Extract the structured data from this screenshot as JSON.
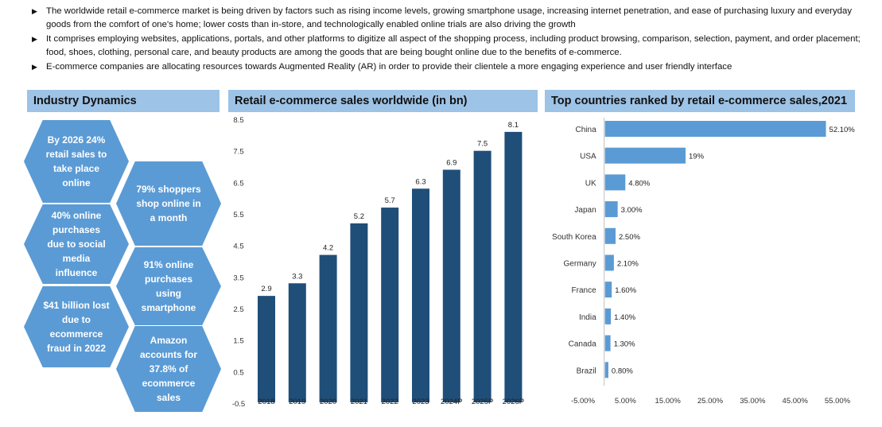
{
  "bullets": [
    "The worldwide retail e-commerce market is being driven by factors such as rising income levels, growing smartphone usage, increasing internet penetration, and ease of purchasing luxury and everyday goods from the comfort of one's home; lower costs than in-store, and technologically enabled online trials are also driving the growth",
    "It comprises employing websites, applications, portals, and other platforms to digitize all aspect of the shopping process, including product browsing, comparison, selection, payment, and order placement; food, shoes, clothing, personal care, and beauty products are among the goods that are being bought online due to the benefits of e-commerce.",
    "E-commerce companies are allocating resources towards Augmented Reality (AR) in order to provide their clientele a more engaging experience and user friendly interface"
  ],
  "industry": {
    "title": "Industry Dynamics",
    "facts": [
      "By 2026 24% retail sales to take place online",
      "79% shoppers shop online in a month",
      "40% online purchases due to social media influence",
      "91% online purchases using smartphone",
      "$41 billion lost due to ecommerce fraud in 2022",
      "Amazon accounts for 37.8% of ecommerce sales"
    ]
  },
  "colors": {
    "header": "#9dc3e6",
    "hex": "#5b9bd5",
    "bar_dark": "#1f4e79",
    "bar_light": "#5b9bd5"
  },
  "chart_data": [
    {
      "type": "bar",
      "title": "Retail e-commerce sales worldwide (in bn)",
      "categories": [
        "2018",
        "2019",
        "2020",
        "2021",
        "2022",
        "2023",
        "2024P",
        "2025P",
        "2026P"
      ],
      "values": [
        2.9,
        3.3,
        4.2,
        5.2,
        5.7,
        6.3,
        6.9,
        7.5,
        8.1
      ],
      "value_labels": [
        "2.9",
        "3.3",
        "4.2",
        "5.2",
        "5.7",
        "6.3",
        "6.9",
        "7.5",
        "8.1"
      ],
      "ylim": [
        -0.5,
        8.5
      ],
      "y_ticks": [
        "8.5",
        "7.5",
        "6.5",
        "5.5",
        "4.5",
        "3.5",
        "2.5",
        "1.5",
        "0.5",
        "-0.5"
      ],
      "grid": false
    },
    {
      "type": "bar",
      "orientation": "horizontal",
      "title": "Top countries ranked by retail e-commerce sales,2021",
      "categories": [
        "China",
        "USA",
        "UK",
        "Japan",
        "South Korea",
        "Germany",
        "France",
        "India",
        "Canada",
        "Brazil"
      ],
      "values": [
        52.1,
        19,
        4.8,
        3.0,
        2.5,
        2.1,
        1.6,
        1.4,
        1.3,
        0.8
      ],
      "value_labels": [
        "52.10%",
        "19%",
        "4.80%",
        "3.00%",
        "2.50%",
        "2.10%",
        "1.60%",
        "1.40%",
        "1.30%",
        "0.80%"
      ],
      "xlim": [
        -5,
        55
      ],
      "x_ticks": [
        "-5.00%",
        "5.00%",
        "15.00%",
        "25.00%",
        "35.00%",
        "45.00%",
        "55.00%"
      ],
      "grid": false
    }
  ]
}
